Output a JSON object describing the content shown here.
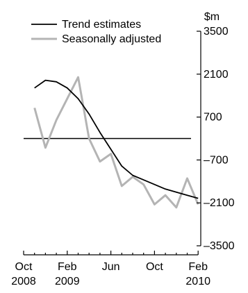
{
  "chart_data": {
    "type": "line",
    "unit_label": "$m",
    "x": [
      "Nov 2008",
      "Dec 2008",
      "Jan 2009",
      "Feb 2009",
      "Mar 2009",
      "Apr 2009",
      "May 2009",
      "Jun 2009",
      "Jul 2009",
      "Aug 2009",
      "Sep 2009",
      "Oct 2009",
      "Nov 2009",
      "Dec 2009",
      "Jan 2010",
      "Feb 2010"
    ],
    "x_ticks": [
      {
        "value": "Oct 2008",
        "line1": "Oct",
        "line2": "2008"
      },
      {
        "value": "Feb 2009",
        "line1": "Feb",
        "line2": "2009"
      },
      {
        "value": "Jun 2009",
        "line1": "Jun",
        "line2": ""
      },
      {
        "value": "Oct 2009",
        "line1": "Oct",
        "line2": ""
      },
      {
        "value": "Feb 2010",
        "line1": "Feb",
        "line2": "2010"
      }
    ],
    "y_ticks": [
      3500,
      2100,
      700,
      -700,
      -2100,
      -3500
    ],
    "y_tick_labels": [
      "3500",
      "2100",
      "700",
      "–700",
      "–2100",
      "–3500"
    ],
    "ylim": [
      -3500,
      3500
    ],
    "zero_line": 0,
    "series": [
      {
        "name": "Trend estimates",
        "color": "#000000",
        "values": [
          1650,
          1900,
          1850,
          1650,
          1300,
          800,
          200,
          -350,
          -900,
          -1200,
          -1350,
          -1500,
          -1650,
          -1750,
          -1850,
          -1950
        ]
      },
      {
        "name": "Seasonally adjusted",
        "color": "#b4b4b4",
        "values": [
          1000,
          -300,
          600,
          1300,
          2000,
          0,
          -750,
          -500,
          -1550,
          -1250,
          -1500,
          -2150,
          -1850,
          -2250,
          -1300,
          -2150
        ]
      }
    ],
    "legend": {
      "placement": "top-left"
    },
    "grid": false
  }
}
